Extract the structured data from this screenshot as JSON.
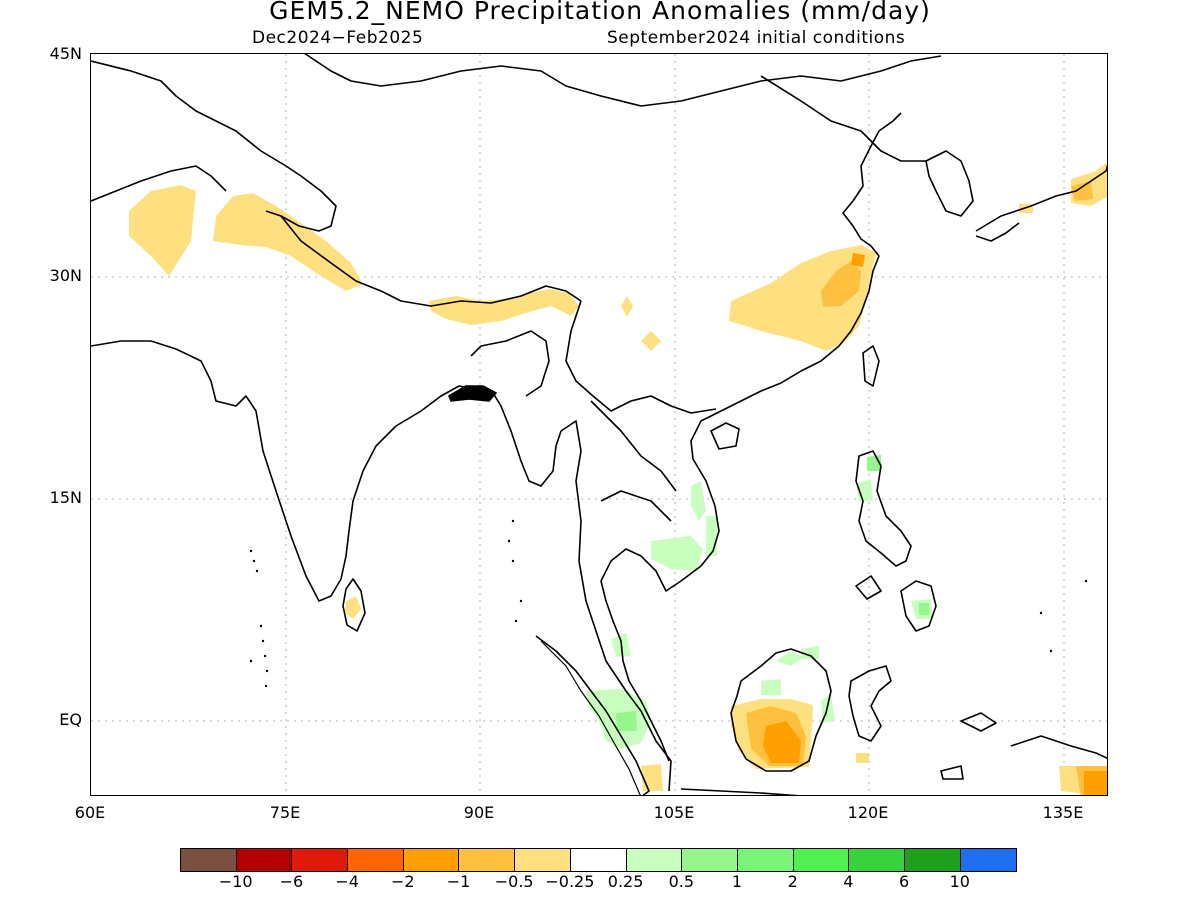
{
  "title": "GEM5.2_NEMO Precipitation Anomalies (mm/day)",
  "subtitle_left": "Dec2024−Feb2025",
  "subtitle_right": "September2024 initial conditions",
  "lat_labels": [
    "45N",
    "30N",
    "15N",
    "EQ"
  ],
  "lon_labels": [
    "60E",
    "75E",
    "90E",
    "105E",
    "120E",
    "135E"
  ],
  "colorbar": {
    "colors": [
      "#7a5040",
      "#b40000",
      "#e01a0a",
      "#ff6400",
      "#ffa000",
      "#ffc040",
      "#ffe080",
      "#ffffff",
      "#c8ffbe",
      "#96f58c",
      "#78f578",
      "#50f050",
      "#37d23c",
      "#1ea01e",
      "#1e6ef0"
    ],
    "labels": [
      "−10",
      "−6",
      "−4",
      "−2",
      "−1",
      "−0.5",
      "−0.25",
      "0.25",
      "0.5",
      "1",
      "2",
      "4",
      "6",
      "10"
    ]
  },
  "anomaly_legend_colors": {
    "dry_light": "#ffe080",
    "dry_medium": "#ffc040",
    "dry_strong": "#ffa000",
    "wet_light": "#c8ffbe",
    "wet_medium": "#96f58c"
  }
}
